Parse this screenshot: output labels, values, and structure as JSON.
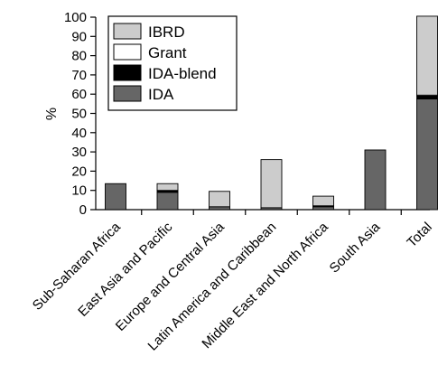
{
  "chart_data": {
    "type": "bar",
    "stacked": true,
    "categories": [
      "Sub-Saharan Africa",
      "East Asia and Pacific",
      "Europe and Central Asia",
      "Latin America and Caribbean",
      "Middle East and North Africa",
      "South Asia",
      "Total"
    ],
    "series": [
      {
        "name": "IDA",
        "color": "#666666",
        "values": [
          13.5,
          9,
          1.5,
          1,
          1.5,
          31,
          57.5
        ]
      },
      {
        "name": "IDA-blend",
        "color": "#000000",
        "values": [
          0,
          1,
          0,
          0,
          0.5,
          0,
          1.5
        ]
      },
      {
        "name": "Grant",
        "color": "#ffffff",
        "values": [
          0,
          0,
          0,
          0,
          0,
          0,
          0.5
        ]
      },
      {
        "name": "IBRD",
        "color": "#cccccc",
        "values": [
          0,
          3.5,
          8,
          25,
          5,
          0,
          41
        ]
      }
    ],
    "legend_order": [
      "IBRD",
      "Grant",
      "IDA-blend",
      "IDA"
    ],
    "legend_position": "top-left",
    "ylabel": "%",
    "xlabel": "",
    "ylim": [
      0,
      100
    ],
    "yticks": [
      0,
      10,
      20,
      30,
      40,
      50,
      60,
      70,
      80,
      90,
      100
    ],
    "grid": false
  }
}
